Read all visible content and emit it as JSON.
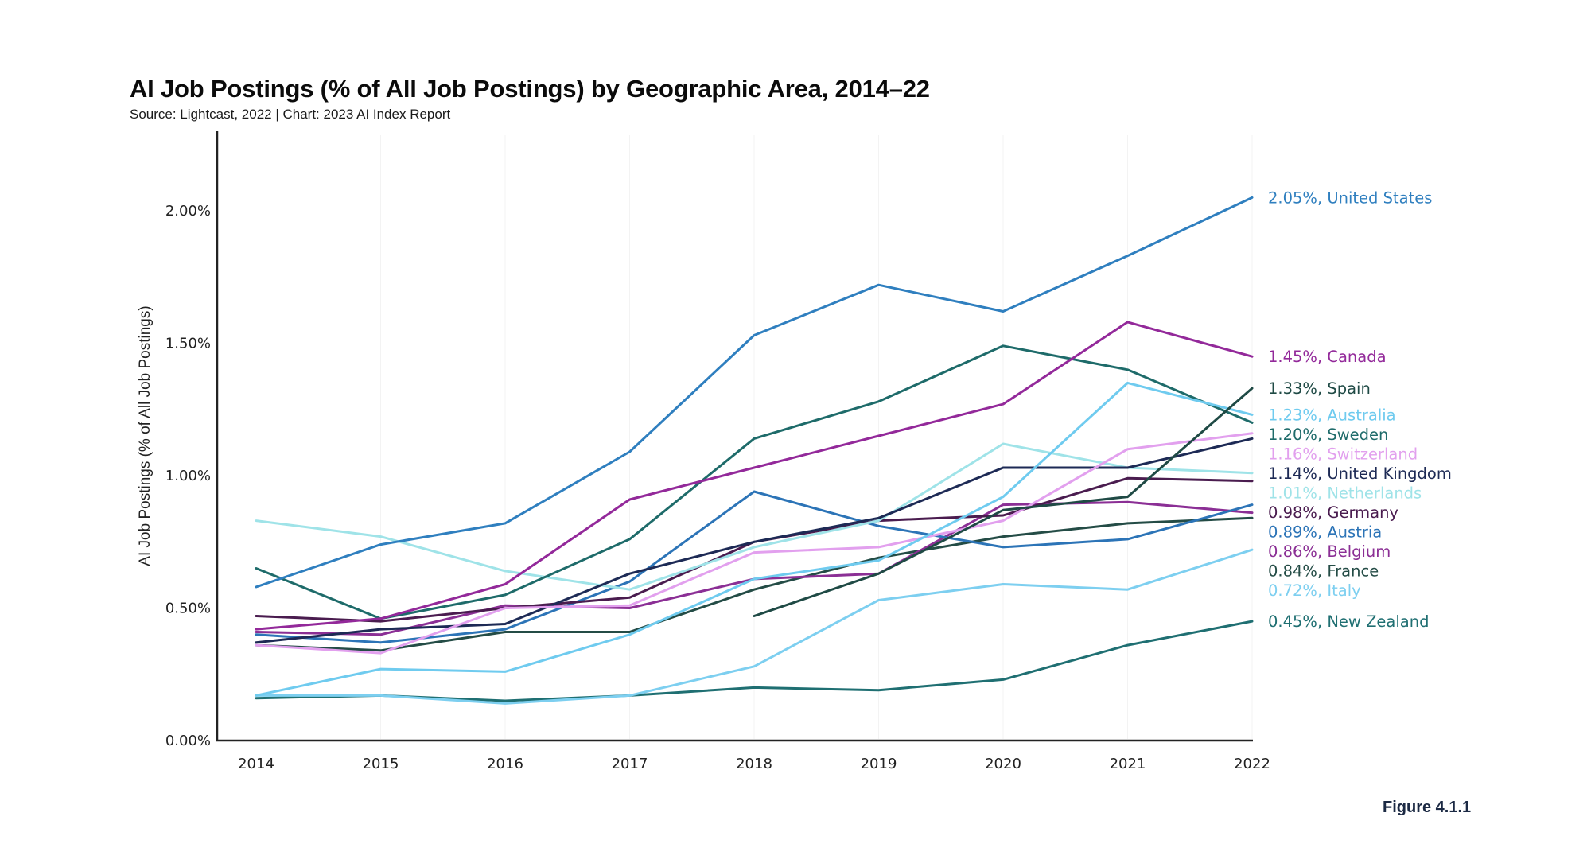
{
  "chart_data": {
    "type": "line",
    "title": "AI Job Postings (% of All Job Postings) by Geographic Area, 2014–22",
    "subtitle": "Source: Lightcast, 2022 | Chart: 2023 AI Index Report",
    "xlabel": "",
    "ylabel": "AI Job Postings (% of All Job Postings)",
    "x": [
      "2014",
      "2015",
      "2016",
      "2017",
      "2018",
      "2019",
      "2020",
      "2021",
      "2022"
    ],
    "ylim": [
      0,
      2.25
    ],
    "yticks": [
      0,
      0.5,
      1.0,
      1.5,
      2.0
    ],
    "ytick_labels": [
      "0.00%",
      "0.50%",
      "1.00%",
      "1.50%",
      "2.00%"
    ],
    "grid": false,
    "legend": "direct-labels-right",
    "series": [
      {
        "name": "United States",
        "color": "#2f7fbf",
        "end_label": "2.05%, United States",
        "values": [
          0.58,
          0.74,
          0.82,
          1.09,
          1.53,
          1.72,
          1.62,
          1.83,
          2.05
        ]
      },
      {
        "name": "Canada",
        "color": "#93299a",
        "end_label": "1.45%, Canada",
        "values": [
          0.42,
          0.46,
          0.59,
          0.91,
          1.03,
          1.15,
          1.27,
          1.58,
          1.45
        ]
      },
      {
        "name": "Spain",
        "color": "#1f4a45",
        "end_label": "1.33%, Spain",
        "values": [
          null,
          null,
          null,
          null,
          0.47,
          0.63,
          0.87,
          0.92,
          1.33
        ]
      },
      {
        "name": "Australia",
        "color": "#6fcbef",
        "end_label": "1.23%, Australia",
        "values": [
          0.17,
          0.27,
          0.26,
          0.4,
          0.61,
          0.68,
          0.92,
          1.35,
          1.23
        ]
      },
      {
        "name": "Sweden",
        "color": "#1e6b6a",
        "end_label": "1.20%, Sweden",
        "values": [
          0.65,
          0.46,
          0.55,
          0.76,
          1.14,
          1.28,
          1.49,
          1.4,
          1.2
        ]
      },
      {
        "name": "Switzerland",
        "color": "#e2a0ee",
        "end_label": "1.16%, Switzerland",
        "values": [
          0.36,
          0.33,
          0.5,
          0.51,
          0.71,
          0.73,
          0.83,
          1.1,
          1.16
        ]
      },
      {
        "name": "United Kingdom",
        "color": "#1d2a55",
        "end_label": "1.14%, United Kingdom",
        "values": [
          0.37,
          0.42,
          0.44,
          0.63,
          0.75,
          0.84,
          1.03,
          1.03,
          1.14
        ]
      },
      {
        "name": "Netherlands",
        "color": "#9fe3e8",
        "end_label": "1.01%, Netherlands",
        "values": [
          0.83,
          0.77,
          0.64,
          0.57,
          0.73,
          0.83,
          1.12,
          1.03,
          1.01
        ]
      },
      {
        "name": "Germany",
        "color": "#4a1c4f",
        "end_label": "0.98%, Germany",
        "values": [
          0.47,
          0.45,
          0.5,
          0.54,
          0.75,
          0.83,
          0.85,
          0.99,
          0.98
        ]
      },
      {
        "name": "Austria",
        "color": "#2c74b7",
        "end_label": "0.89%, Austria",
        "values": [
          0.4,
          0.37,
          0.42,
          0.6,
          0.94,
          0.81,
          0.73,
          0.76,
          0.89
        ]
      },
      {
        "name": "Belgium",
        "color": "#8b2f95",
        "end_label": "0.86%, Belgium",
        "values": [
          0.41,
          0.4,
          0.51,
          0.5,
          0.61,
          0.63,
          0.89,
          0.9,
          0.86
        ]
      },
      {
        "name": "France",
        "color": "#244c46",
        "end_label": "0.84%, France",
        "values": [
          0.36,
          0.34,
          0.41,
          0.41,
          0.57,
          0.69,
          0.77,
          0.82,
          0.84
        ]
      },
      {
        "name": "Italy",
        "color": "#7dcff0",
        "end_label": "0.72%, Italy",
        "values": [
          0.17,
          0.17,
          0.14,
          0.17,
          0.28,
          0.53,
          0.59,
          0.57,
          0.72
        ]
      },
      {
        "name": "New Zealand",
        "color": "#1f6f72",
        "end_label": "0.45%, New Zealand",
        "values": [
          0.16,
          0.17,
          0.15,
          0.17,
          0.2,
          0.19,
          0.23,
          0.36,
          0.45
        ]
      }
    ],
    "end_label_order": [
      "United States",
      "Canada",
      "Spain",
      "Australia",
      "Sweden",
      "Switzerland",
      "United Kingdom",
      "Netherlands",
      "Germany",
      "Austria",
      "Belgium",
      "France",
      "Italy",
      "New Zealand"
    ]
  },
  "figure_label": "Figure 4.1.1"
}
